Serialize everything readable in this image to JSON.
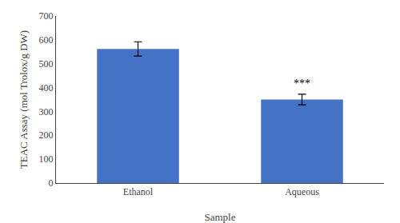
{
  "chart_data": {
    "type": "bar",
    "xlabel": "Sample",
    "ylabel": "TEAC Assay (mol Trolox/g DW)",
    "categories": [
      "Ethanol",
      "Aqueous"
    ],
    "values": [
      562,
      350
    ],
    "errors": [
      30,
      22
    ],
    "color": "#4472C4",
    "ylim": [
      0,
      700
    ],
    "yticks": [
      0,
      100,
      200,
      300,
      400,
      500,
      600,
      700
    ],
    "grid": false,
    "annotations": [
      {
        "category": "Aqueous",
        "text": "***"
      }
    ]
  }
}
